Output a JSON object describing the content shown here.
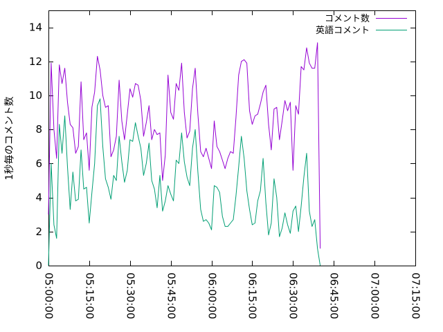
{
  "chart_data": {
    "type": "line",
    "title": "",
    "xlabel": "",
    "ylabel": "1秒毎のコメント数",
    "xlim": [
      "05:00:00",
      "07:15:00"
    ],
    "ylim": [
      0,
      15
    ],
    "x_ticks": [
      "05:00:00",
      "05:15:00",
      "05:30:00",
      "05:45:00",
      "06:00:00",
      "06:15:00",
      "06:30:00",
      "06:45:00",
      "07:00:00",
      "07:15:00"
    ],
    "y_ticks": [
      0,
      2,
      4,
      6,
      8,
      10,
      12,
      14
    ],
    "x_sampling_interval_seconds": 60,
    "x_start": "05:00:00",
    "grid": false,
    "legend_position": "top-right",
    "series": [
      {
        "name": "コメント数",
        "color": "#9400d3",
        "values": [
          3.0,
          11.9,
          8.0,
          6.3,
          11.8,
          10.7,
          11.6,
          9.6,
          8.3,
          8.1,
          6.6,
          7.0,
          10.8,
          7.4,
          7.8,
          5.6,
          9.3,
          10.2,
          12.3,
          11.5,
          10.0,
          9.3,
          9.4,
          6.4,
          6.8,
          7.6,
          10.9,
          8.5,
          7.4,
          8.9,
          10.4,
          9.9,
          10.7,
          10.6,
          9.7,
          7.6,
          8.4,
          9.4,
          7.4,
          8.0,
          7.7,
          7.8,
          5.0,
          6.5,
          11.2,
          9.0,
          8.6,
          10.7,
          10.3,
          11.9,
          9.0,
          7.5,
          7.9,
          10.4,
          11.6,
          8.9,
          6.7,
          6.4,
          6.9,
          6.3,
          5.7,
          8.5,
          7.0,
          6.7,
          6.2,
          5.7,
          6.3,
          6.7,
          6.6,
          8.7,
          11.2,
          12.0,
          12.1,
          11.9,
          9.1,
          8.3,
          8.8,
          8.9,
          9.5,
          10.2,
          10.6,
          8.3,
          6.8,
          9.2,
          9.3,
          7.4,
          8.5,
          9.7,
          9.1,
          9.6,
          5.6,
          9.4,
          8.9,
          11.7,
          11.5,
          12.8,
          11.9,
          11.6,
          11.6,
          13.1,
          1.0
        ]
      },
      {
        "name": "英語コメント",
        "color": "#009e73",
        "values": [
          0.0,
          6.0,
          2.4,
          1.6,
          8.3,
          6.6,
          8.8,
          5.8,
          3.3,
          5.5,
          3.8,
          3.9,
          6.8,
          4.5,
          4.6,
          2.5,
          4.3,
          6.0,
          9.4,
          9.8,
          7.0,
          5.1,
          4.6,
          3.9,
          5.3,
          5.0,
          7.6,
          6.1,
          4.9,
          5.6,
          7.4,
          7.3,
          8.4,
          7.6,
          6.9,
          5.3,
          6.0,
          7.2,
          5.0,
          4.5,
          3.4,
          5.3,
          3.2,
          3.8,
          4.7,
          4.2,
          3.8,
          6.2,
          6.0,
          7.8,
          6.1,
          5.2,
          4.7,
          6.9,
          8.0,
          5.5,
          3.3,
          2.6,
          2.7,
          2.5,
          2.1,
          4.7,
          4.6,
          4.3,
          2.9,
          2.3,
          2.3,
          2.5,
          2.7,
          4.1,
          5.8,
          7.6,
          6.3,
          4.4,
          3.3,
          2.4,
          2.5,
          3.8,
          4.4,
          6.3,
          3.7,
          1.8,
          2.5,
          5.1,
          4.0,
          1.7,
          2.2,
          3.1,
          2.4,
          1.9,
          3.2,
          3.5,
          2.0,
          3.5,
          5.2,
          6.6,
          3.2,
          2.3,
          2.7,
          1.0,
          0.0
        ]
      }
    ]
  }
}
